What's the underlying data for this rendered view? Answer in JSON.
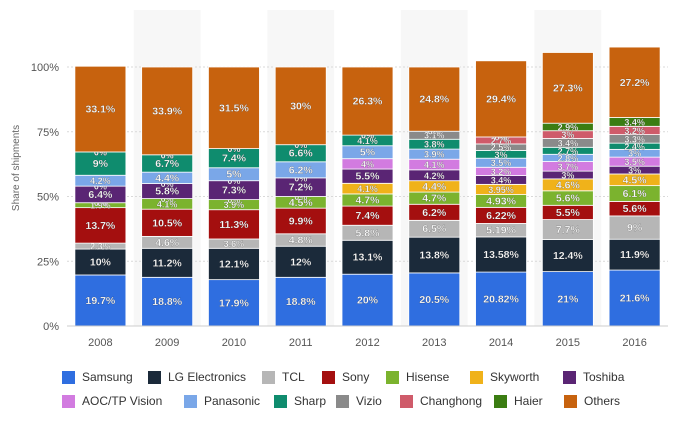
{
  "chart_data": {
    "type": "bar",
    "stacked": true,
    "ylabel": "Share of shipments",
    "ylim": [
      0,
      100
    ],
    "yticks": [
      "0%",
      "25%",
      "50%",
      "75%",
      "100%"
    ],
    "grid": true,
    "legend_placement": "bottom",
    "categories": [
      "2008",
      "2009",
      "2010",
      "2011",
      "2012",
      "2013",
      "2014",
      "2015",
      "2016"
    ],
    "series": [
      {
        "name": "Samsung",
        "color": "#2f6ee0",
        "values": [
          19.7,
          18.8,
          17.9,
          18.8,
          20,
          20.5,
          20.82,
          21,
          21.6
        ],
        "labels": [
          "19.7%",
          "18.8%",
          "17.9%",
          "18.8%",
          "20%",
          "20.5%",
          "20.82%",
          "21%",
          "21.6%"
        ]
      },
      {
        "name": "LG Electronics",
        "color": "#1b2a3a",
        "values": [
          10,
          11.2,
          12.1,
          12,
          13.1,
          13.8,
          13.58,
          12.4,
          11.9
        ],
        "labels": [
          "10%",
          "11.2%",
          "12.1%",
          "12%",
          "13.1%",
          "13.8%",
          "13.58%",
          "12.4%",
          "11.9%"
        ]
      },
      {
        "name": "TCL",
        "color": "#b6b6b6",
        "values": [
          2.3,
          4.6,
          3.6,
          4.8,
          5.8,
          6.5,
          5.19,
          7.7,
          9
        ],
        "labels": [
          "2.3%",
          "4.6%",
          "3.6%",
          "4.8%",
          "5.8%",
          "6.5%",
          "5.19%",
          "7.7%",
          "9%"
        ]
      },
      {
        "name": "Sony",
        "color": "#a40f0f",
        "values": [
          13.7,
          10.5,
          11.3,
          9.9,
          7.4,
          6.2,
          6.22,
          5.5,
          5.6
        ],
        "labels": [
          "13.7%",
          "10.5%",
          "11.3%",
          "9.9%",
          "7.4%",
          "6.2%",
          "6.22%",
          "5.5%",
          "5.6%"
        ]
      },
      {
        "name": "Hisense",
        "color": "#7bb32e",
        "values": [
          1.9,
          4.1,
          3.9,
          4.5,
          4.7,
          4.7,
          4.93,
          5.6,
          6.1
        ],
        "labels": [
          "1.9%",
          "4.1%",
          "3.9%",
          "4.5%",
          "4.7%",
          "4.7%",
          "4.93%",
          "5.6%",
          "6.1%"
        ]
      },
      {
        "name": "Skyworth",
        "color": "#f0b21a",
        "values": [
          0,
          0,
          0,
          0,
          4.1,
          4.4,
          3.95,
          4.6,
          4.5
        ],
        "labels": [
          "0%",
          "0%",
          "0%",
          "0%",
          "4.1%",
          "4.4%",
          "3.95%",
          "4.6%",
          "4.5%"
        ]
      },
      {
        "name": "Toshiba",
        "color": "#5a2574",
        "values": [
          6.4,
          5.8,
          7.3,
          7.2,
          5.5,
          4.2,
          3.4,
          3,
          3
        ],
        "labels": [
          "6.4%",
          "5.8%",
          "7.3%",
          "7.2%",
          "5.5%",
          "4.2%",
          "3.4%",
          "3%",
          "3%"
        ]
      },
      {
        "name": "AOC/TP Vision",
        "color": "#d27be0",
        "values": [
          0,
          0,
          0,
          0,
          4,
          4.1,
          3.2,
          3.7,
          3.5
        ],
        "labels": [
          "0%",
          "0%",
          "0%",
          "0%",
          "4%",
          "4.1%",
          "3.2%",
          "3.7%",
          "3.5%"
        ]
      },
      {
        "name": "Panasonic",
        "color": "#7aa7e8",
        "values": [
          4.2,
          4.4,
          5,
          6.2,
          5,
          3.9,
          3.5,
          2.8,
          3
        ],
        "labels": [
          "4.2%",
          "4.4%",
          "5%",
          "6.2%",
          "5%",
          "3.9%",
          "3.5%",
          "2.8%",
          "3%"
        ]
      },
      {
        "name": "Sharp",
        "color": "#0f8c6e",
        "values": [
          9,
          6.7,
          7.4,
          6.6,
          4.1,
          3.8,
          3,
          2.7,
          2.4
        ],
        "labels": [
          "9%",
          "6.7%",
          "7.4%",
          "6.6%",
          "4.1%",
          "3.8%",
          "3%",
          "2.7%",
          "2.4%"
        ]
      },
      {
        "name": "Vizio",
        "color": "#8a8a8a",
        "values": [
          0,
          0,
          0,
          0,
          0,
          3.1,
          2.5,
          3.4,
          3.3
        ],
        "labels": [
          "0%",
          "0%",
          "0%",
          "0%",
          "0%",
          "3.1%",
          "2.5%",
          "3.4%",
          "3.3%"
        ]
      },
      {
        "name": "Changhong",
        "color": "#cf5b6a",
        "values": [
          0,
          0,
          0,
          0,
          0,
          0,
          2.7,
          3,
          3.2
        ],
        "labels": [
          "0%",
          "0%",
          "0%",
          "0%",
          "0%",
          "0%",
          "2.7%",
          "3%",
          "3.2%"
        ]
      },
      {
        "name": "Haier",
        "color": "#3b7d12",
        "values": [
          0,
          0,
          0,
          0,
          0,
          0,
          0,
          2.9,
          3.4
        ],
        "labels": [
          "0%",
          "0%",
          "0%",
          "0%",
          "0%",
          "0%",
          "0%",
          "2.9%",
          "3.4%"
        ]
      },
      {
        "name": "Others",
        "color": "#c7620e",
        "values": [
          33.1,
          33.9,
          31.5,
          30,
          26.3,
          24.8,
          29.4,
          27.3,
          27.2
        ],
        "labels": [
          "33.1%",
          "33.9%",
          "31.5%",
          "30%",
          "26.3%",
          "24.8%",
          "29.4%",
          "27.3%",
          "27.2%"
        ]
      }
    ]
  }
}
